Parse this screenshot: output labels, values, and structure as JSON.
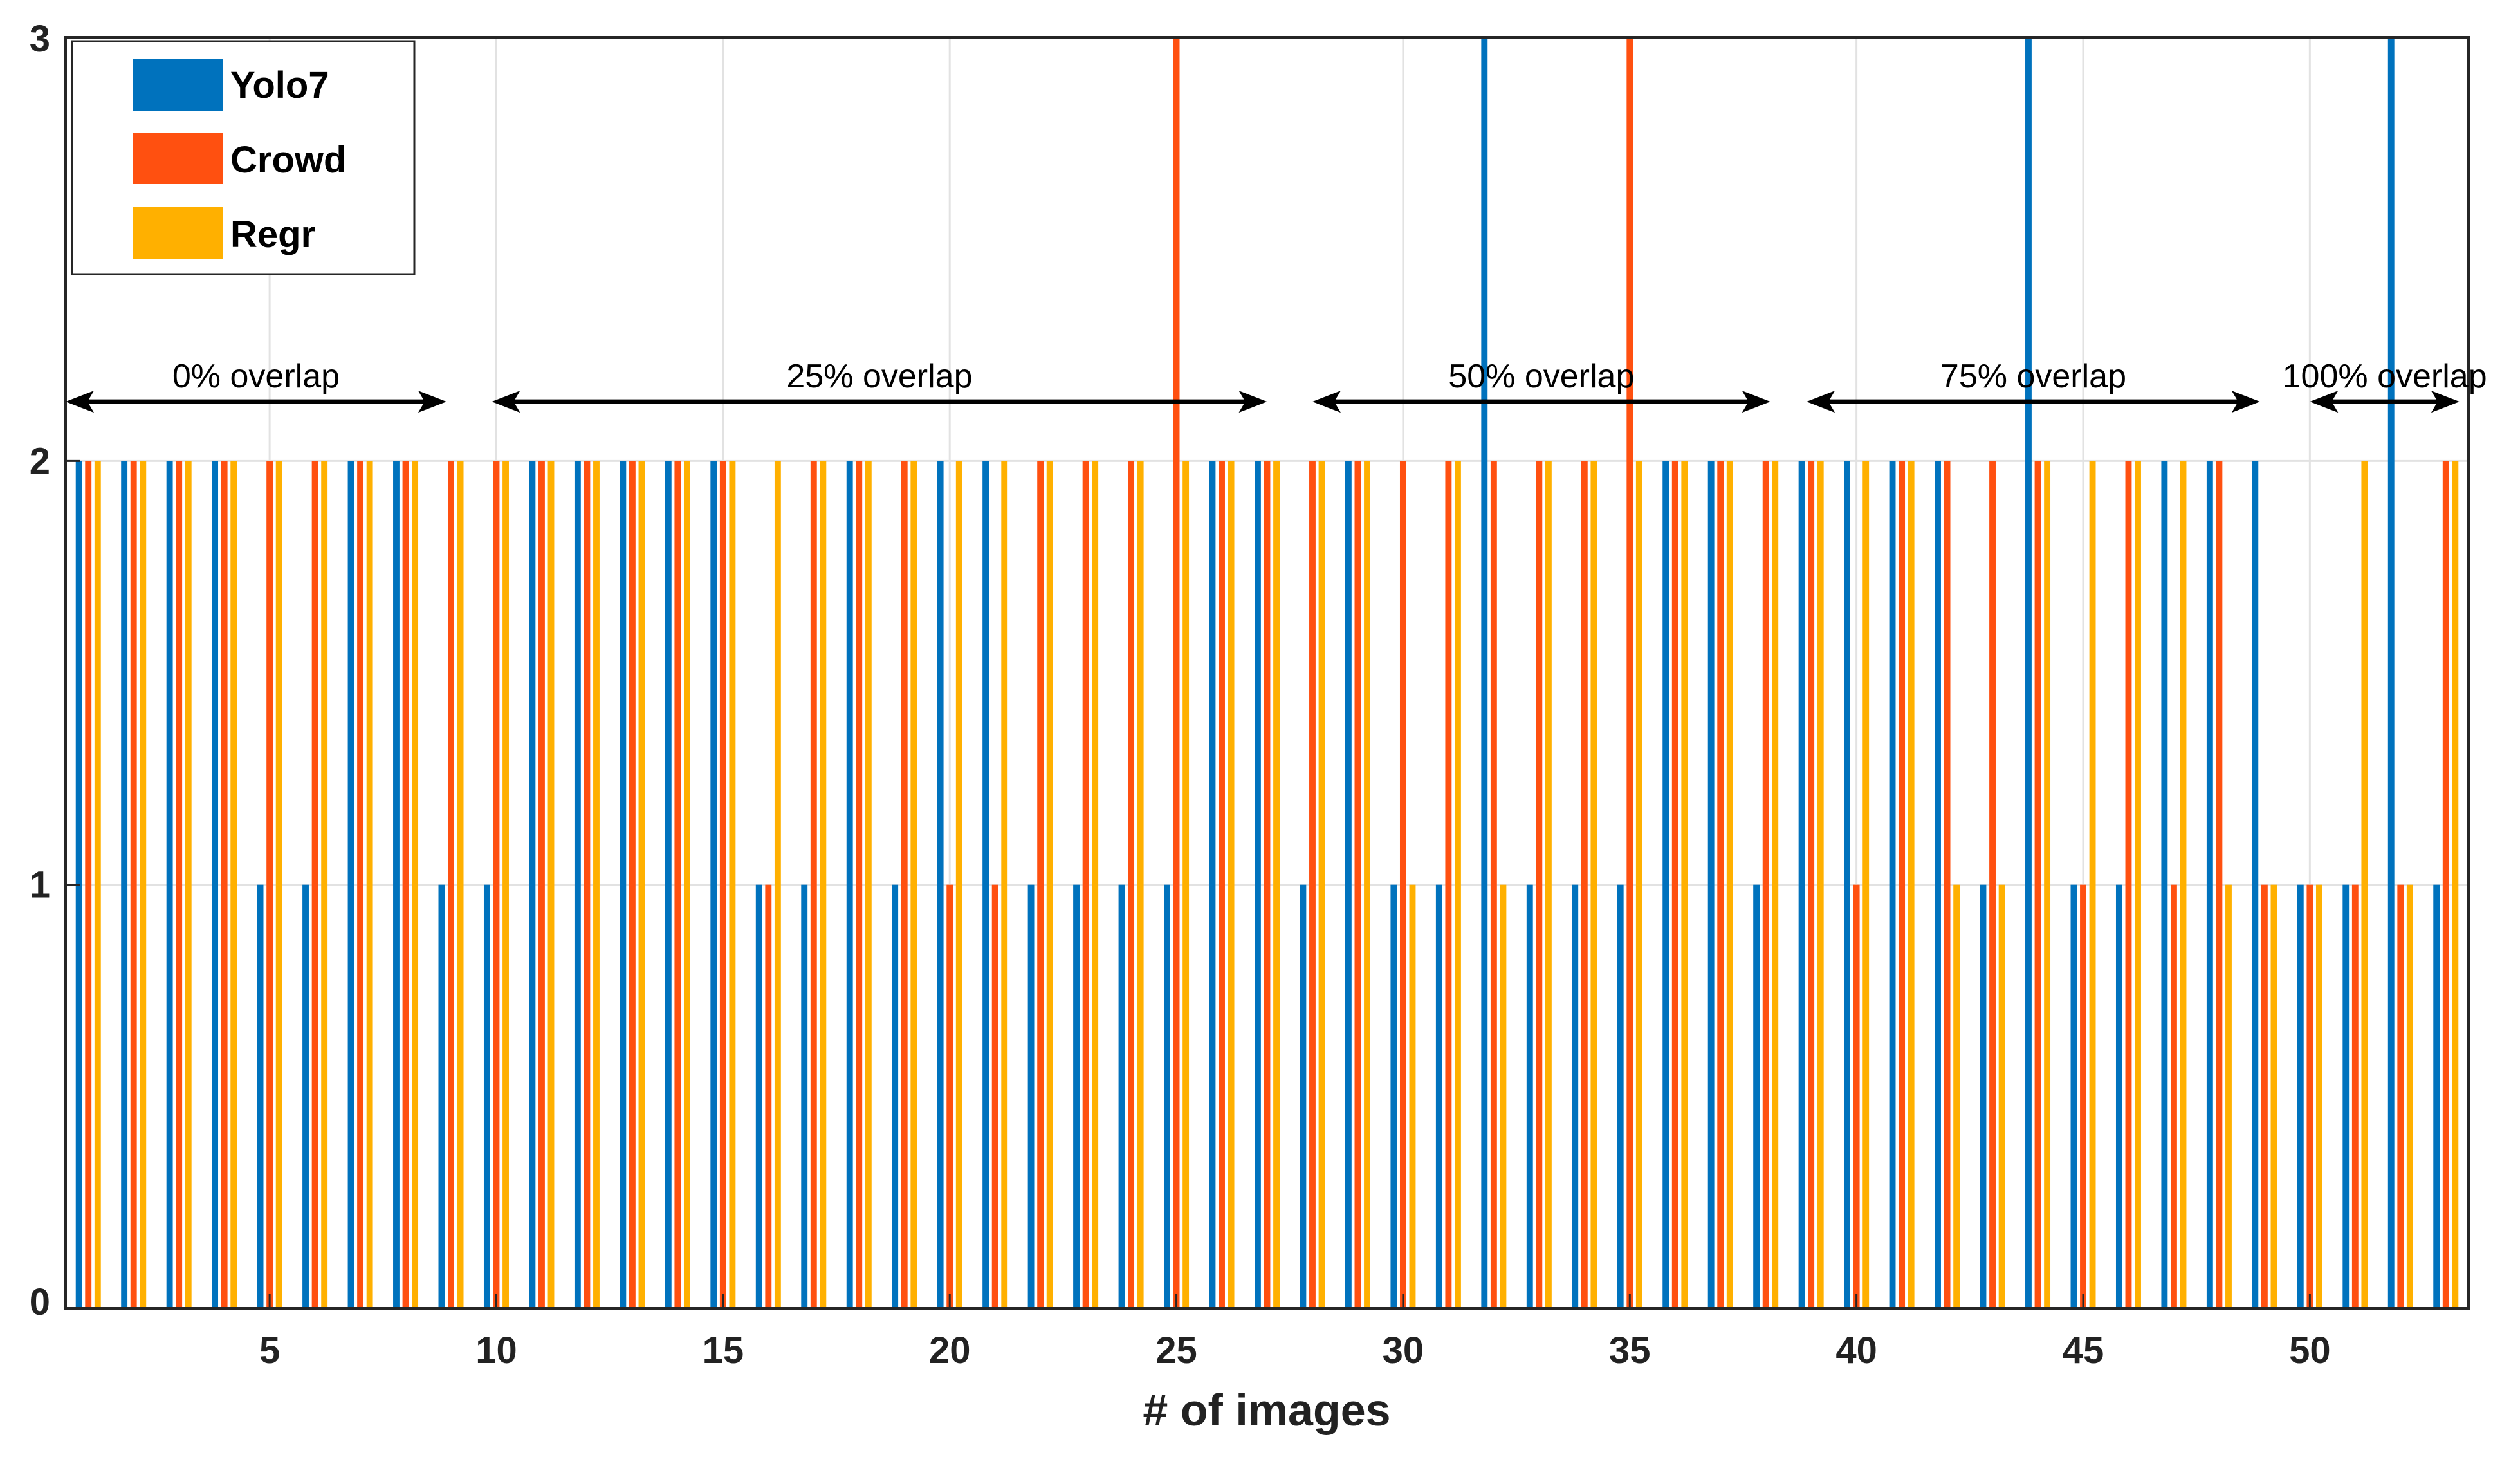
{
  "chart_data": {
    "type": "bar",
    "title": "",
    "xlabel": "# of images",
    "ylabel": "",
    "xlim": [
      0.5,
      53.5
    ],
    "ylim": [
      0,
      3
    ],
    "grid": true,
    "legend_position": "top-left",
    "xticks": [
      5,
      10,
      15,
      20,
      25,
      30,
      35,
      40,
      45,
      50
    ],
    "yticks": [
      0,
      1,
      2,
      3
    ],
    "x": [
      1,
      2,
      3,
      4,
      5,
      6,
      7,
      8,
      9,
      10,
      11,
      12,
      13,
      14,
      15,
      16,
      17,
      18,
      19,
      20,
      21,
      22,
      23,
      24,
      25,
      26,
      27,
      28,
      29,
      30,
      31,
      32,
      33,
      34,
      35,
      36,
      37,
      38,
      39,
      40,
      41,
      42,
      43,
      44,
      45,
      46,
      47,
      48,
      49,
      50,
      51,
      52,
      53
    ],
    "series": [
      {
        "name": "Yolo7",
        "color": "#0072BD",
        "values": [
          2,
          2,
          2,
          2,
          1,
          1,
          2,
          2,
          1,
          1,
          2,
          2,
          2,
          2,
          2,
          1,
          1,
          2,
          1,
          2,
          2,
          1,
          1,
          1,
          1,
          2,
          2,
          1,
          2,
          1,
          1,
          3,
          1,
          1,
          1,
          2,
          2,
          1,
          2,
          2,
          2,
          2,
          1,
          3,
          1,
          1,
          2,
          2,
          2,
          1,
          1,
          3,
          1
        ]
      },
      {
        "name": "Crowd",
        "color": "#FF5010",
        "values": [
          2,
          2,
          2,
          2,
          2,
          2,
          2,
          2,
          2,
          2,
          2,
          2,
          2,
          2,
          2,
          1,
          2,
          2,
          2,
          1,
          1,
          2,
          2,
          2,
          3,
          2,
          2,
          2,
          2,
          2,
          2,
          2,
          2,
          2,
          3,
          2,
          2,
          2,
          2,
          1,
          2,
          2,
          2,
          2,
          1,
          2,
          1,
          2,
          1,
          1,
          1,
          1,
          2
        ]
      },
      {
        "name": "Regr",
        "color": "#FFB000",
        "values": [
          2,
          2,
          2,
          2,
          2,
          2,
          2,
          2,
          2,
          2,
          2,
          2,
          2,
          2,
          2,
          2,
          2,
          2,
          2,
          2,
          2,
          2,
          2,
          2,
          2,
          2,
          2,
          2,
          2,
          1,
          2,
          1,
          2,
          2,
          2,
          2,
          2,
          2,
          2,
          2,
          2,
          1,
          1,
          2,
          2,
          2,
          2,
          1,
          1,
          1,
          2,
          1,
          2
        ]
      }
    ],
    "annotations": [
      {
        "text": "0% overlap",
        "x_start": 0.5,
        "x_end": 8.9
      },
      {
        "text": "25% overlap",
        "x_start": 9.9,
        "x_end": 27.0
      },
      {
        "text": "50% overlap",
        "x_start": 28.0,
        "x_end": 38.1
      },
      {
        "text": "75% overlap",
        "x_start": 38.9,
        "x_end": 48.9
      },
      {
        "text": "100% overlap",
        "x_start": 50.0,
        "x_end": 53.3
      }
    ],
    "annotation_y": 2.14
  }
}
